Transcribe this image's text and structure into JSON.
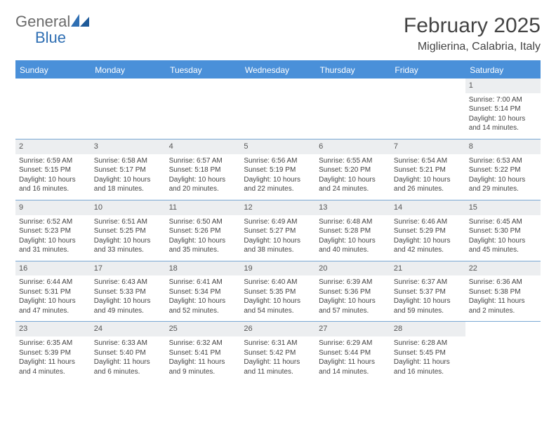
{
  "logo": {
    "text1": "General",
    "text2": "Blue"
  },
  "header": {
    "month": "February 2025",
    "location": "Miglierina, Calabria, Italy"
  },
  "colors": {
    "accent": "#4a90d9",
    "header_bg": "#eceef0",
    "text": "#444444"
  },
  "weekdays": [
    "Sunday",
    "Monday",
    "Tuesday",
    "Wednesday",
    "Thursday",
    "Friday",
    "Saturday"
  ],
  "weeks": [
    [
      {
        "empty": true
      },
      {
        "empty": true
      },
      {
        "empty": true
      },
      {
        "empty": true
      },
      {
        "empty": true
      },
      {
        "empty": true
      },
      {
        "day": "1",
        "sunrise": "Sunrise: 7:00 AM",
        "sunset": "Sunset: 5:14 PM",
        "daylight": "Daylight: 10 hours and 14 minutes."
      }
    ],
    [
      {
        "day": "2",
        "sunrise": "Sunrise: 6:59 AM",
        "sunset": "Sunset: 5:15 PM",
        "daylight": "Daylight: 10 hours and 16 minutes."
      },
      {
        "day": "3",
        "sunrise": "Sunrise: 6:58 AM",
        "sunset": "Sunset: 5:17 PM",
        "daylight": "Daylight: 10 hours and 18 minutes."
      },
      {
        "day": "4",
        "sunrise": "Sunrise: 6:57 AM",
        "sunset": "Sunset: 5:18 PM",
        "daylight": "Daylight: 10 hours and 20 minutes."
      },
      {
        "day": "5",
        "sunrise": "Sunrise: 6:56 AM",
        "sunset": "Sunset: 5:19 PM",
        "daylight": "Daylight: 10 hours and 22 minutes."
      },
      {
        "day": "6",
        "sunrise": "Sunrise: 6:55 AM",
        "sunset": "Sunset: 5:20 PM",
        "daylight": "Daylight: 10 hours and 24 minutes."
      },
      {
        "day": "7",
        "sunrise": "Sunrise: 6:54 AM",
        "sunset": "Sunset: 5:21 PM",
        "daylight": "Daylight: 10 hours and 26 minutes."
      },
      {
        "day": "8",
        "sunrise": "Sunrise: 6:53 AM",
        "sunset": "Sunset: 5:22 PM",
        "daylight": "Daylight: 10 hours and 29 minutes."
      }
    ],
    [
      {
        "day": "9",
        "sunrise": "Sunrise: 6:52 AM",
        "sunset": "Sunset: 5:23 PM",
        "daylight": "Daylight: 10 hours and 31 minutes."
      },
      {
        "day": "10",
        "sunrise": "Sunrise: 6:51 AM",
        "sunset": "Sunset: 5:25 PM",
        "daylight": "Daylight: 10 hours and 33 minutes."
      },
      {
        "day": "11",
        "sunrise": "Sunrise: 6:50 AM",
        "sunset": "Sunset: 5:26 PM",
        "daylight": "Daylight: 10 hours and 35 minutes."
      },
      {
        "day": "12",
        "sunrise": "Sunrise: 6:49 AM",
        "sunset": "Sunset: 5:27 PM",
        "daylight": "Daylight: 10 hours and 38 minutes."
      },
      {
        "day": "13",
        "sunrise": "Sunrise: 6:48 AM",
        "sunset": "Sunset: 5:28 PM",
        "daylight": "Daylight: 10 hours and 40 minutes."
      },
      {
        "day": "14",
        "sunrise": "Sunrise: 6:46 AM",
        "sunset": "Sunset: 5:29 PM",
        "daylight": "Daylight: 10 hours and 42 minutes."
      },
      {
        "day": "15",
        "sunrise": "Sunrise: 6:45 AM",
        "sunset": "Sunset: 5:30 PM",
        "daylight": "Daylight: 10 hours and 45 minutes."
      }
    ],
    [
      {
        "day": "16",
        "sunrise": "Sunrise: 6:44 AM",
        "sunset": "Sunset: 5:31 PM",
        "daylight": "Daylight: 10 hours and 47 minutes."
      },
      {
        "day": "17",
        "sunrise": "Sunrise: 6:43 AM",
        "sunset": "Sunset: 5:33 PM",
        "daylight": "Daylight: 10 hours and 49 minutes."
      },
      {
        "day": "18",
        "sunrise": "Sunrise: 6:41 AM",
        "sunset": "Sunset: 5:34 PM",
        "daylight": "Daylight: 10 hours and 52 minutes."
      },
      {
        "day": "19",
        "sunrise": "Sunrise: 6:40 AM",
        "sunset": "Sunset: 5:35 PM",
        "daylight": "Daylight: 10 hours and 54 minutes."
      },
      {
        "day": "20",
        "sunrise": "Sunrise: 6:39 AM",
        "sunset": "Sunset: 5:36 PM",
        "daylight": "Daylight: 10 hours and 57 minutes."
      },
      {
        "day": "21",
        "sunrise": "Sunrise: 6:37 AM",
        "sunset": "Sunset: 5:37 PM",
        "daylight": "Daylight: 10 hours and 59 minutes."
      },
      {
        "day": "22",
        "sunrise": "Sunrise: 6:36 AM",
        "sunset": "Sunset: 5:38 PM",
        "daylight": "Daylight: 11 hours and 2 minutes."
      }
    ],
    [
      {
        "day": "23",
        "sunrise": "Sunrise: 6:35 AM",
        "sunset": "Sunset: 5:39 PM",
        "daylight": "Daylight: 11 hours and 4 minutes."
      },
      {
        "day": "24",
        "sunrise": "Sunrise: 6:33 AM",
        "sunset": "Sunset: 5:40 PM",
        "daylight": "Daylight: 11 hours and 6 minutes."
      },
      {
        "day": "25",
        "sunrise": "Sunrise: 6:32 AM",
        "sunset": "Sunset: 5:41 PM",
        "daylight": "Daylight: 11 hours and 9 minutes."
      },
      {
        "day": "26",
        "sunrise": "Sunrise: 6:31 AM",
        "sunset": "Sunset: 5:42 PM",
        "daylight": "Daylight: 11 hours and 11 minutes."
      },
      {
        "day": "27",
        "sunrise": "Sunrise: 6:29 AM",
        "sunset": "Sunset: 5:44 PM",
        "daylight": "Daylight: 11 hours and 14 minutes."
      },
      {
        "day": "28",
        "sunrise": "Sunrise: 6:28 AM",
        "sunset": "Sunset: 5:45 PM",
        "daylight": "Daylight: 11 hours and 16 minutes."
      },
      {
        "empty": true
      }
    ]
  ]
}
